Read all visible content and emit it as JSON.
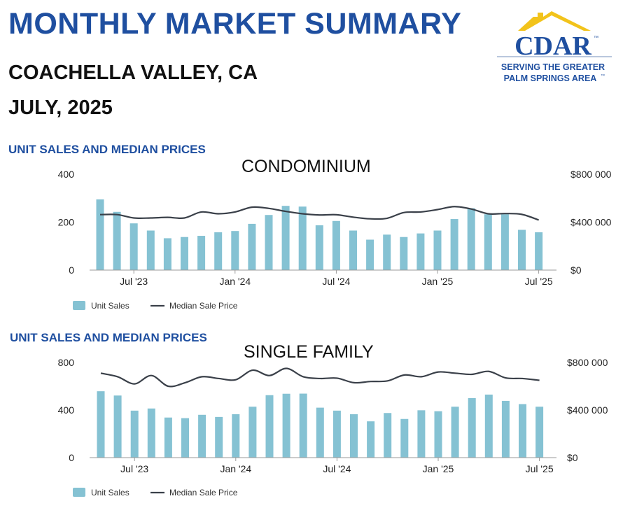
{
  "header": {
    "title": "MONTHLY MARKET SUMMARY",
    "region": "COACHELLA VALLEY, CA",
    "period": "JULY, 2025"
  },
  "logo": {
    "name": "CDAR",
    "tagline_1": "SERVING THE GREATER",
    "tagline_2": "PALM SPRINGS AREA",
    "tm": "™",
    "colors": {
      "roof": "#f2c31b",
      "text": "#1f4fa0"
    }
  },
  "colors": {
    "bar": "#85c2d3",
    "line": "#3a4049",
    "axis": "#9a9a9a"
  },
  "chart_data": [
    {
      "type": "bar",
      "section_label": "UNIT SALES AND MEDIAN PRICES",
      "title": "CONDOMINIUM",
      "x_tick_labels": [
        "Jul '23",
        "Jan '24",
        "Jul '24",
        "Jan '25",
        "Jul '25"
      ],
      "x_tick_indices": [
        2,
        8,
        14,
        20,
        26
      ],
      "y_left": {
        "ticks": [
          "0",
          "200",
          "400"
        ],
        "range": [
          0,
          400
        ]
      },
      "y_right": {
        "ticks": [
          "$0",
          "$400 000",
          "$800 000"
        ],
        "range": [
          0,
          800000
        ]
      },
      "legend": [
        "Unit Sales",
        "Median Sale Price"
      ],
      "series": [
        {
          "name": "Unit Sales",
          "type": "bar",
          "values": [
            295,
            243,
            195,
            165,
            133,
            138,
            143,
            158,
            163,
            193,
            230,
            268,
            265,
            187,
            205,
            165,
            127,
            148,
            138,
            153,
            165,
            213,
            258,
            233,
            233,
            168,
            158
          ]
        },
        {
          "name": "Median Sale Price",
          "type": "line",
          "values": [
            463000,
            463000,
            435000,
            435000,
            440000,
            435000,
            485000,
            470000,
            485000,
            525000,
            515000,
            490000,
            470000,
            460000,
            462000,
            442000,
            428000,
            432000,
            480000,
            485000,
            505000,
            530000,
            510000,
            470000,
            472000,
            465000,
            418000
          ]
        }
      ]
    },
    {
      "type": "bar",
      "section_label": "UNIT SALES AND MEDIAN PRICES",
      "title": "SINGLE FAMILY",
      "x_tick_labels": [
        "Jul '23",
        "Jan '24",
        "Jul '24",
        "Jan '25",
        "Jul '25"
      ],
      "x_tick_indices": [
        2,
        8,
        14,
        20,
        26
      ],
      "y_left": {
        "ticks": [
          "0",
          "400",
          "800"
        ],
        "range": [
          0,
          800
        ]
      },
      "y_right": {
        "ticks": [
          "$0",
          "$400 000",
          "$800 000"
        ],
        "range": [
          0,
          800000
        ]
      },
      "legend": [
        "Unit Sales",
        "Median Sale Price"
      ],
      "series": [
        {
          "name": "Unit Sales",
          "type": "bar",
          "values": [
            558,
            522,
            395,
            413,
            337,
            332,
            360,
            342,
            365,
            428,
            525,
            537,
            538,
            420,
            395,
            365,
            305,
            375,
            325,
            398,
            390,
            428,
            500,
            530,
            477,
            450,
            428
          ]
        },
        {
          "name": "Median Sale Price",
          "type": "line",
          "values": [
            710000,
            680000,
            620000,
            690000,
            600000,
            630000,
            680000,
            665000,
            655000,
            735000,
            690000,
            750000,
            680000,
            665000,
            668000,
            630000,
            640000,
            645000,
            695000,
            680000,
            720000,
            710000,
            700000,
            725000,
            670000,
            665000,
            650000
          ]
        }
      ]
    }
  ]
}
